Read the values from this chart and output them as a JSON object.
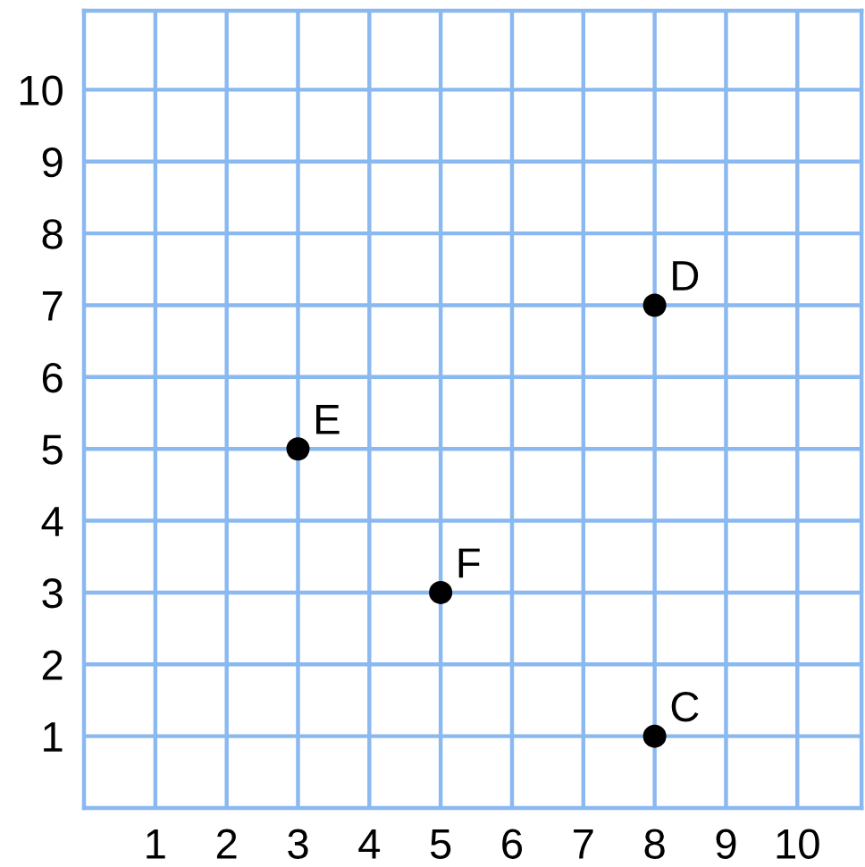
{
  "chart_data": {
    "type": "scatter",
    "x": [
      8,
      3,
      5,
      8
    ],
    "values": [
      7,
      5,
      3,
      1
    ],
    "color": "#000000",
    "marker": "circle",
    "annotations": [
      {
        "text": "D",
        "x": 8,
        "y": 7
      },
      {
        "text": "E",
        "x": 3,
        "y": 5
      },
      {
        "text": "F",
        "x": 5,
        "y": 3
      },
      {
        "text": "C",
        "x": 8,
        "y": 1
      }
    ],
    "xlim": [
      0,
      10.9
    ],
    "ylim": [
      0,
      11.1
    ],
    "xticks": [
      1,
      2,
      3,
      4,
      5,
      6,
      7,
      8,
      9,
      10
    ],
    "yticks": [
      1,
      2,
      3,
      4,
      5,
      6,
      7,
      8,
      9,
      10
    ],
    "grid": true
  }
}
